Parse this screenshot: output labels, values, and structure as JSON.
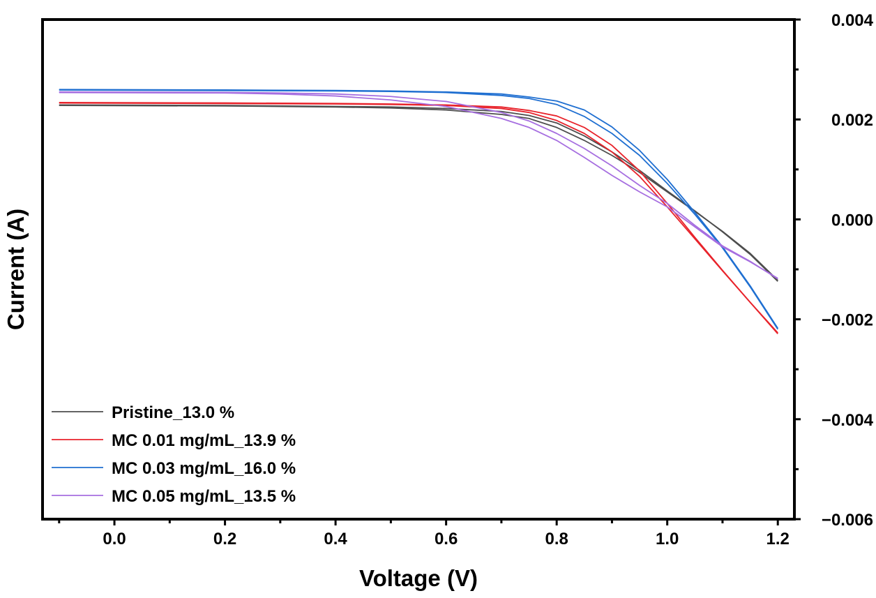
{
  "chart_data": {
    "type": "line",
    "title": "",
    "xlabel": "Voltage (V)",
    "ylabel": "Current (A)",
    "xlim": [
      -0.13,
      1.23
    ],
    "ylim": [
      -0.006,
      0.004
    ],
    "xticks": [
      0.0,
      0.2,
      0.4,
      0.6,
      0.8,
      1.0,
      1.2
    ],
    "xtick_labels": [
      "0.0",
      "0.2",
      "0.4",
      "0.6",
      "0.8",
      "1.0",
      "1.2"
    ],
    "yticks": [
      0.004,
      0.002,
      0.0,
      -0.002,
      -0.004,
      -0.006
    ],
    "ytick_labels": [
      "0.004",
      "0.002",
      "0.000",
      "−0.002",
      "−0.004",
      "−0.006"
    ],
    "y_axis_side": "right",
    "grid": false,
    "legend_position": "bottom-left",
    "series": [
      {
        "name": "Pristine_13.0 %",
        "color": "#4d4d4d",
        "curves": [
          {
            "x": [
              -0.1,
              0.2,
              0.4,
              0.5,
              0.6,
              0.7,
              0.75,
              0.8,
              0.85,
              0.9,
              0.95,
              1.0,
              1.05,
              1.1,
              1.15,
              1.2
            ],
            "y": [
              0.00228,
              0.00227,
              0.00225,
              0.00223,
              0.00219,
              0.0021,
              0.00202,
              0.00184,
              0.00158,
              0.00128,
              0.00094,
              0.00055,
              0.00016,
              -0.00024,
              -0.00068,
              -0.00122
            ]
          },
          {
            "x": [
              -0.1,
              0.2,
              0.4,
              0.5,
              0.6,
              0.7,
              0.75,
              0.8,
              0.85,
              0.9,
              0.95,
              1.0,
              1.05,
              1.1,
              1.15,
              1.2
            ],
            "y": [
              0.00229,
              0.00228,
              0.00226,
              0.00225,
              0.00222,
              0.00216,
              0.00208,
              0.00193,
              0.00167,
              0.00135,
              0.00098,
              0.00057,
              0.00017,
              -0.00025,
              -0.0007,
              -0.00124
            ]
          }
        ]
      },
      {
        "name": "MC 0.01 mg/mL_13.9 %",
        "color": "#e8232b",
        "curves": [
          {
            "x": [
              -0.1,
              0.2,
              0.4,
              0.5,
              0.6,
              0.7,
              0.75,
              0.8,
              0.85,
              0.9,
              0.95,
              1.0,
              1.05,
              1.1,
              1.15,
              1.2
            ],
            "y": [
              0.00233,
              0.00232,
              0.00231,
              0.0023,
              0.00228,
              0.00222,
              0.00214,
              0.00198,
              0.00172,
              0.00135,
              0.00086,
              0.00025,
              -0.00039,
              -0.00103,
              -0.00166,
              -0.00227
            ]
          },
          {
            "x": [
              -0.1,
              0.2,
              0.4,
              0.5,
              0.6,
              0.7,
              0.75,
              0.8,
              0.85,
              0.9,
              0.95,
              1.0,
              1.05,
              1.1,
              1.15,
              1.2
            ],
            "y": [
              0.00234,
              0.00233,
              0.00232,
              0.00231,
              0.00229,
              0.00225,
              0.00218,
              0.00207,
              0.00184,
              0.00148,
              0.00097,
              0.00032,
              -0.00036,
              -0.00102,
              -0.00166,
              -0.00229
            ]
          }
        ]
      },
      {
        "name": "MC 0.03 mg/mL_16.0 %",
        "color": "#1f6fd1",
        "curves": [
          {
            "x": [
              -0.1,
              0.2,
              0.4,
              0.5,
              0.6,
              0.7,
              0.75,
              0.8,
              0.85,
              0.9,
              0.95,
              1.0,
              1.05,
              1.1,
              1.15,
              1.2
            ],
            "y": [
              0.00259,
              0.00258,
              0.00257,
              0.00256,
              0.00254,
              0.00248,
              0.00242,
              0.0023,
              0.00206,
              0.00172,
              0.00128,
              0.00072,
              0.0001,
              -0.00057,
              -0.00135,
              -0.0022
            ]
          },
          {
            "x": [
              -0.1,
              0.2,
              0.4,
              0.5,
              0.6,
              0.7,
              0.75,
              0.8,
              0.85,
              0.9,
              0.95,
              1.0,
              1.05,
              1.1,
              1.15,
              1.2
            ],
            "y": [
              0.0026,
              0.00259,
              0.00258,
              0.00257,
              0.00255,
              0.00251,
              0.00245,
              0.00237,
              0.00219,
              0.00185,
              0.00138,
              0.0008,
              0.00014,
              -0.00055,
              -0.00133,
              -0.00218
            ]
          }
        ]
      },
      {
        "name": "MC 0.05 mg/mL_13.5 %",
        "color": "#a66ee0",
        "curves": [
          {
            "x": [
              -0.1,
              0.2,
              0.3,
              0.4,
              0.5,
              0.6,
              0.7,
              0.75,
              0.8,
              0.85,
              0.9,
              0.95,
              1.0,
              1.05,
              1.1,
              1.15,
              1.2
            ],
            "y": [
              0.00254,
              0.00253,
              0.00251,
              0.00247,
              0.00239,
              0.00226,
              0.00202,
              0.00184,
              0.00158,
              0.00124,
              0.00088,
              0.00055,
              0.00025,
              -0.00015,
              -0.00055,
              -0.00085,
              -0.00118
            ]
          },
          {
            "x": [
              -0.1,
              0.2,
              0.3,
              0.4,
              0.5,
              0.6,
              0.7,
              0.75,
              0.8,
              0.85,
              0.9,
              0.95,
              1.0,
              1.05,
              1.1,
              1.15,
              1.2
            ],
            "y": [
              0.00255,
              0.00254,
              0.00253,
              0.00251,
              0.00246,
              0.00236,
              0.00214,
              0.00197,
              0.00172,
              0.00142,
              0.00107,
              0.00068,
              0.00032,
              -0.00012,
              -0.00053,
              -0.00084,
              -0.00119
            ]
          }
        ]
      }
    ]
  }
}
